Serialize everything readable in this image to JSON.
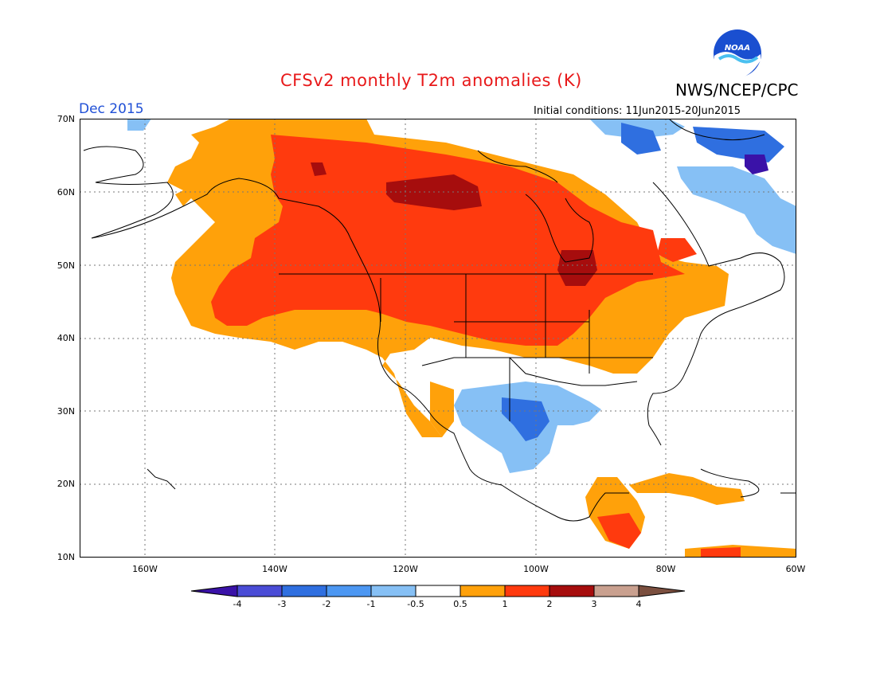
{
  "header": {
    "title": "CFSv2 monthly T2m anomalies (K)",
    "agency": "NWS/NCEP/CPC",
    "period": "Dec 2015",
    "initial_conditions": "Initial conditions: 11Jun2015-20Jun2015",
    "logo_text": "NOAA"
  },
  "axes": {
    "lat_labels": [
      "70N",
      "60N",
      "50N",
      "40N",
      "30N",
      "20N",
      "10N"
    ],
    "lon_labels": [
      "160W",
      "140W",
      "120W",
      "100W",
      "80W",
      "60W"
    ]
  },
  "colorbar": {
    "labels": [
      "-4",
      "-3",
      "-2",
      "-1",
      "-0.5",
      "0.5",
      "1",
      "2",
      "3",
      "4"
    ],
    "colors": [
      "#3a12a8",
      "#4a4cd6",
      "#2f6fe0",
      "#4c97f2",
      "#86c0f5",
      "#ffffff",
      "#ffa10a",
      "#ff3a0e",
      "#a60d0d",
      "#c9a08f",
      "#7b4f3f"
    ]
  },
  "anomaly_regions": [
    {
      "name": "canada-west-warm",
      "category": "1 to 2"
    },
    {
      "name": "central-canada-hot",
      "category": "2 to 3"
    },
    {
      "name": "us-southwest-cool",
      "category": "-1 to -0.5"
    },
    {
      "name": "labrador-cool",
      "category": "-2 to -1"
    }
  ]
}
